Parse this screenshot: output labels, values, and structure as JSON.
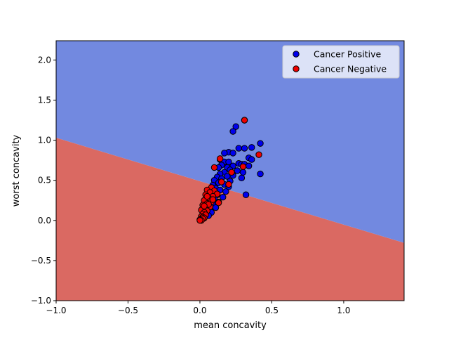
{
  "chart_data": {
    "type": "scatter",
    "title": "",
    "xlabel": "mean concavity",
    "ylabel": "worst concavity",
    "xlim": [
      -1.0,
      1.42
    ],
    "ylim": [
      -1.0,
      2.24
    ],
    "x_ticks": [
      -1.0,
      -0.5,
      0.0,
      0.5,
      1.0
    ],
    "x_tick_labels": [
      "−1.0",
      "−0.5",
      "0.0",
      "0.5",
      "1.0"
    ],
    "y_ticks": [
      -1.0,
      -0.5,
      0.0,
      0.5,
      1.0,
      1.5,
      2.0
    ],
    "y_tick_labels": [
      "−1.0",
      "−0.5",
      "0.0",
      "0.5",
      "1.0",
      "1.5",
      "2.0"
    ],
    "grid": false,
    "legend_position": "top-right",
    "decision_boundary": {
      "line": [
        [
          -1.0,
          1.03
        ],
        [
          1.42,
          -0.28
        ]
      ],
      "regions": [
        {
          "name": "Cancer Positive",
          "side": "above",
          "color": "#7289e0"
        },
        {
          "name": "Cancer Negative",
          "side": "below",
          "color": "#da6962"
        }
      ]
    },
    "series": [
      {
        "name": "Cancer Positive",
        "color": "#0000ee",
        "points": [
          [
            0.31,
            1.25
          ],
          [
            0.25,
            1.17
          ],
          [
            0.23,
            1.11
          ],
          [
            0.42,
            0.96
          ],
          [
            0.31,
            0.9
          ],
          [
            0.27,
            0.9
          ],
          [
            0.36,
            0.91
          ],
          [
            0.2,
            0.85
          ],
          [
            0.17,
            0.84
          ],
          [
            0.23,
            0.84
          ],
          [
            0.34,
            0.78
          ],
          [
            0.36,
            0.76
          ],
          [
            0.14,
            0.76
          ],
          [
            0.17,
            0.73
          ],
          [
            0.2,
            0.73
          ],
          [
            0.27,
            0.71
          ],
          [
            0.29,
            0.7
          ],
          [
            0.31,
            0.7
          ],
          [
            0.34,
            0.68
          ],
          [
            0.23,
            0.68
          ],
          [
            0.15,
            0.69
          ],
          [
            0.19,
            0.66
          ],
          [
            0.13,
            0.66
          ],
          [
            0.21,
            0.63
          ],
          [
            0.26,
            0.62
          ],
          [
            0.3,
            0.6
          ],
          [
            0.17,
            0.6
          ],
          [
            0.14,
            0.58
          ],
          [
            0.42,
            0.58
          ],
          [
            0.23,
            0.56
          ],
          [
            0.19,
            0.55
          ],
          [
            0.12,
            0.54
          ],
          [
            0.29,
            0.53
          ],
          [
            0.15,
            0.52
          ],
          [
            0.1,
            0.5
          ],
          [
            0.21,
            0.49
          ],
          [
            0.13,
            0.47
          ],
          [
            0.17,
            0.45
          ],
          [
            0.09,
            0.44
          ],
          [
            0.2,
            0.42
          ],
          [
            0.11,
            0.4
          ],
          [
            0.14,
            0.38
          ],
          [
            0.07,
            0.37
          ],
          [
            0.18,
            0.36
          ],
          [
            0.09,
            0.34
          ],
          [
            0.12,
            0.32
          ],
          [
            0.32,
            0.32
          ],
          [
            0.08,
            0.3
          ],
          [
            0.16,
            0.29
          ],
          [
            0.1,
            0.27
          ],
          [
            0.06,
            0.25
          ],
          [
            0.13,
            0.23
          ],
          [
            0.09,
            0.21
          ],
          [
            0.05,
            0.19
          ],
          [
            0.11,
            0.16
          ],
          [
            0.07,
            0.14
          ],
          [
            0.04,
            0.12
          ],
          [
            0.08,
            0.1
          ],
          [
            0.03,
            0.08
          ],
          [
            0.06,
            0.06
          ]
        ]
      },
      {
        "name": "Cancer Negative",
        "color": "#ee0000",
        "points": [
          [
            0.31,
            1.25
          ],
          [
            0.41,
            0.82
          ],
          [
            0.14,
            0.77
          ],
          [
            0.1,
            0.66
          ],
          [
            0.3,
            0.67
          ],
          [
            0.22,
            0.6
          ],
          [
            0.15,
            0.48
          ],
          [
            0.2,
            0.45
          ],
          [
            0.08,
            0.41
          ],
          [
            0.05,
            0.38
          ],
          [
            0.1,
            0.37
          ],
          [
            0.07,
            0.35
          ],
          [
            0.12,
            0.33
          ],
          [
            0.04,
            0.32
          ],
          [
            0.09,
            0.3
          ],
          [
            0.06,
            0.28
          ],
          [
            0.13,
            0.22
          ],
          [
            0.03,
            0.25
          ],
          [
            0.08,
            0.23
          ],
          [
            0.05,
            0.21
          ],
          [
            0.02,
            0.19
          ],
          [
            0.07,
            0.17
          ],
          [
            0.04,
            0.15
          ],
          [
            0.01,
            0.13
          ],
          [
            0.05,
            0.12
          ],
          [
            0.03,
            0.1
          ],
          [
            0.02,
            0.08
          ],
          [
            0.04,
            0.07
          ],
          [
            0.01,
            0.05
          ],
          [
            0.02,
            0.04
          ],
          [
            0.03,
            0.03
          ],
          [
            0.01,
            0.02
          ],
          [
            0.0,
            0.01
          ],
          [
            0.02,
            0.02
          ],
          [
            0.01,
            0.0
          ],
          [
            0.0,
            0.0
          ],
          [
            0.05,
            0.3
          ],
          [
            0.06,
            0.2
          ],
          [
            0.03,
            0.18
          ],
          [
            0.09,
            0.26
          ]
        ]
      }
    ]
  }
}
